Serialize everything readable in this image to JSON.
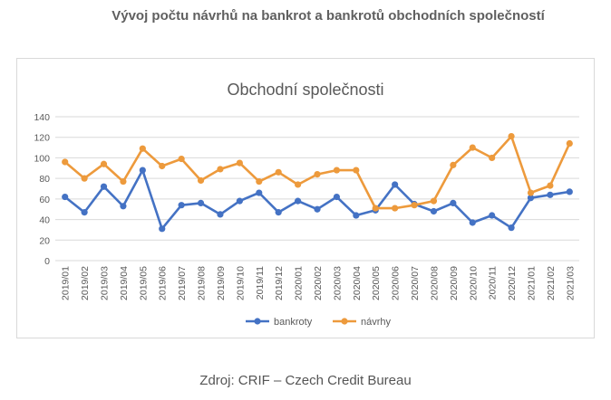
{
  "heading": "Vývoj počtu návrhů na bankrot a bankrotů obchodních společností",
  "source": "Zdroj: CRIF – Czech Credit Bureau",
  "colors": {
    "bankroty": "#4472c4",
    "navrhy": "#ed9a3c",
    "grid": "#d9d9d9",
    "text": "#595959"
  },
  "chart_data": {
    "type": "line",
    "title": "Obchodní společnosti",
    "xlabel": "",
    "ylabel": "",
    "ylim": [
      0,
      140
    ],
    "yticks": [
      0,
      20,
      40,
      60,
      80,
      100,
      120,
      140
    ],
    "grid": true,
    "legend_position": "bottom",
    "categories": [
      "2019/01",
      "2019/02",
      "2019/03",
      "2019/04",
      "2019/05",
      "2019/06",
      "2019/07",
      "2019/08",
      "2019/09",
      "2019/10",
      "2019/11",
      "2019/12",
      "2020/01",
      "2020/02",
      "2020/03",
      "2020/04",
      "2020/05",
      "2020/06",
      "2020/07",
      "2020/08",
      "2020/09",
      "2020/10",
      "2020/11",
      "2020/12",
      "2021/01",
      "2021/02",
      "2021/03"
    ],
    "series": [
      {
        "name": "bankroty",
        "values": [
          62,
          47,
          72,
          53,
          88,
          31,
          54,
          56,
          45,
          58,
          66,
          47,
          58,
          50,
          62,
          44,
          49,
          74,
          55,
          48,
          56,
          37,
          44,
          32,
          61,
          64,
          67
        ]
      },
      {
        "name": "návrhy",
        "values": [
          96,
          80,
          94,
          77,
          109,
          92,
          99,
          78,
          89,
          95,
          77,
          86,
          74,
          84,
          88,
          88,
          51,
          51,
          54,
          58,
          93,
          110,
          100,
          121,
          66,
          73,
          114
        ]
      }
    ]
  }
}
